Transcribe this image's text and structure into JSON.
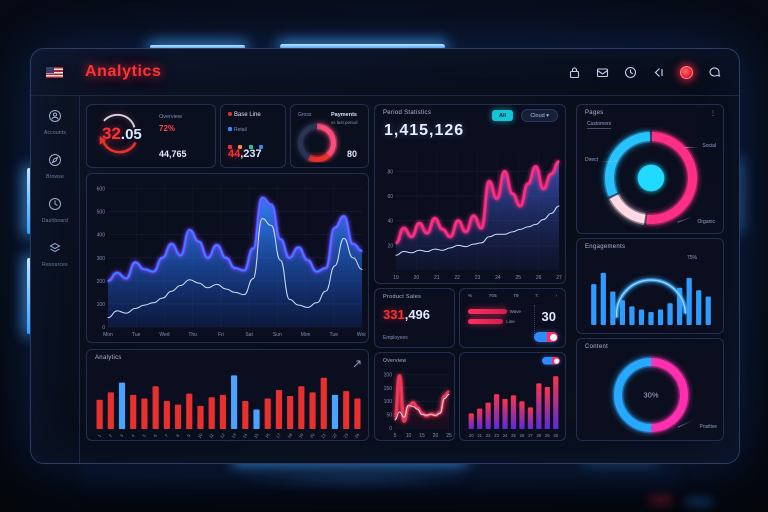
{
  "app": {
    "title": "Analytics"
  },
  "header": {
    "icons": [
      {
        "name": "lock-icon"
      },
      {
        "name": "mail-icon"
      },
      {
        "name": "clock-icon"
      },
      {
        "name": "back-icon"
      },
      {
        "name": "notification-icon"
      },
      {
        "name": "chat-icon"
      }
    ]
  },
  "sidebar": {
    "items": [
      {
        "icon": "account-icon",
        "label": "Accounts"
      },
      {
        "icon": "browse-icon",
        "label": "Browse"
      },
      {
        "icon": "dashboard-icon",
        "label": "Dashboard"
      },
      {
        "icon": "resources-icon",
        "label": "Resources"
      }
    ]
  },
  "kpi": {
    "card1": {
      "label": "Overview",
      "value_main": "32",
      "value_decimal": ".05",
      "percent": "72%",
      "total": "44,765"
    },
    "card2": {
      "legend": "Base Line",
      "sub": "Retail",
      "value_red": "44",
      "value_rest": ",237"
    },
    "card3": {
      "label_left": "Gross",
      "label_right": "Payments",
      "sub": "vs last period",
      "value": "80"
    }
  },
  "pink_panel": {
    "title": "Period Statistics",
    "value": "1,415,126",
    "button": "All",
    "dropdown": "Cloud ▾"
  },
  "product_panel": {
    "title": "Product Sales",
    "value_red": "331",
    "value_rest": ",496",
    "footer": "Employees"
  },
  "stats_panel": {
    "headers": [
      "%",
      "705",
      "79",
      "7:",
      "›"
    ],
    "bars": [
      {
        "label": "Wave",
        "value": 92
      },
      {
        "label": "Line",
        "value": 84
      }
    ],
    "value": "30"
  },
  "overview_panel": {
    "title": "Overview"
  },
  "analytics_panel": {
    "title": "Analytics"
  },
  "pages_panel": {
    "title": "Pages",
    "subtitle": "Customers",
    "labels": [
      "Direct",
      "Social",
      "Organic"
    ]
  },
  "engagement_panel": {
    "title": "Engagements",
    "annotation": "75%"
  },
  "content_panel": {
    "title": "Content",
    "label": "Positive"
  },
  "chart_data": [
    {
      "id": "main-area",
      "type": "area",
      "ylim": [
        0,
        620
      ],
      "vgrid": 9,
      "yticks": [
        600,
        500,
        400,
        300,
        200,
        100,
        0
      ],
      "categories": [
        "Mon",
        "Tue",
        "Wed",
        "Thu",
        "Fri",
        "Sat",
        "Sun",
        "Mon",
        "Tue",
        "Wed"
      ],
      "series": [
        {
          "name": "traffic",
          "color": "#2f8bff",
          "fill": true,
          "fillColor": "#2f8bff",
          "fillBottom": "#1b4fd0",
          "fillTop": 0.95,
          "glow": "#7a3bff",
          "lw": 1.6,
          "values": [
            200,
            235,
            210,
            280,
            250,
            240,
            300,
            360,
            310,
            420,
            370,
            300,
            355,
            300,
            255,
            245,
            340,
            560,
            530,
            380,
            300,
            345,
            290,
            240,
            255,
            430,
            480,
            360,
            330
          ]
        },
        {
          "name": "baseline",
          "color": "#cfe0ff",
          "fill": false,
          "lw": 1,
          "values": [
            40,
            70,
            60,
            80,
            95,
            105,
            125,
            155,
            180,
            205,
            190,
            170,
            185,
            165,
            150,
            140,
            210,
            470,
            440,
            290,
            120,
            95,
            85,
            105,
            155,
            265,
            385,
            300,
            250
          ]
        }
      ]
    },
    {
      "id": "pink-line",
      "type": "area",
      "ylim": [
        0,
        95
      ],
      "vgrid": 8,
      "yticks": [
        80,
        60,
        40,
        20
      ],
      "categories": [
        "19",
        "20",
        "21",
        "22",
        "23",
        "24",
        "25",
        "26",
        "27"
      ],
      "series": [
        {
          "name": "trend",
          "color": "#ff2f86",
          "fill": true,
          "fillColor": "#3c57c9",
          "fillBottom": "#222d66",
          "fillTop": 0.85,
          "glow": "#ff2f86",
          "lw": 1.6,
          "values": [
            22,
            34,
            27,
            38,
            30,
            42,
            33,
            27,
            40,
            31,
            44,
            34,
            72,
            58,
            80,
            62,
            52,
            70,
            84,
            66,
            78,
            88
          ]
        },
        {
          "name": "forecast",
          "color": "#cfe0ff",
          "fill": false,
          "lw": 1,
          "values": [
            12,
            15,
            14,
            16,
            15,
            17,
            16,
            18,
            20,
            19,
            21,
            22,
            27,
            29,
            29,
            31,
            33,
            35,
            37,
            41,
            46,
            52
          ]
        }
      ]
    },
    {
      "id": "mini-line",
      "type": "area",
      "ylim": [
        0,
        220
      ],
      "yticks": [
        200,
        150,
        100,
        50,
        0
      ],
      "categories": [
        "5",
        "10",
        "15",
        "20",
        "25"
      ],
      "series": [
        {
          "name": "loss",
          "color": "#ff3b5c",
          "fill": true,
          "fillColor": "#7c1030",
          "fillBottom": "#40091c",
          "fillTop": 0.9,
          "glow": "#ff3b5c",
          "lw": 1.2,
          "values": [
            35,
            195,
            25,
            80,
            95,
            75,
            55,
            45,
            52,
            48,
            58,
            120,
            135
          ]
        },
        {
          "name": "avg",
          "color": "#e8ecff",
          "fill": false,
          "lw": 0.9,
          "values": [
            30,
            60,
            40,
            85,
            80,
            70,
            50,
            48,
            50,
            47,
            55,
            110,
            125
          ]
        }
      ]
    },
    {
      "id": "gradient-bars",
      "type": "bar",
      "ylim": [
        0,
        100
      ],
      "barWidth": 0.62,
      "categories": [
        "20",
        "21",
        "22",
        "23",
        "24",
        "25",
        "26",
        "27",
        "28",
        "29",
        "30"
      ],
      "values": [
        26,
        34,
        44,
        58,
        50,
        56,
        46,
        36,
        76,
        70,
        88
      ],
      "gradient": [
        "#ff3348",
        "#5b2bd9"
      ]
    },
    {
      "id": "analytics-bars",
      "type": "bar",
      "ylim": [
        0,
        100
      ],
      "barWidth": 0.55,
      "tickRotate": -55,
      "categories": [
        "1",
        "2",
        "3",
        "4",
        "5",
        "6",
        "7",
        "8",
        "9",
        "10",
        "11",
        "12",
        "13",
        "14",
        "15",
        "16",
        "17",
        "18",
        "19",
        "20",
        "21",
        "22",
        "23",
        "24"
      ],
      "values": [
        48,
        60,
        76,
        56,
        50,
        70,
        46,
        40,
        58,
        38,
        52,
        56,
        88,
        46,
        32,
        50,
        64,
        54,
        70,
        60,
        84,
        56,
        62,
        50
      ],
      "color": "#e8312f",
      "highlight": "#4aa3ff",
      "highlight_indices": [
        2,
        12,
        14,
        21
      ]
    },
    {
      "id": "engagement-bars",
      "type": "bars-arc",
      "color": "#2f9bff",
      "values": [
        66,
        84,
        54,
        40,
        30,
        25,
        21,
        25,
        35,
        60,
        76,
        56,
        46
      ],
      "arc": {
        "color": "#35a8ff",
        "annotation": "75%"
      }
    },
    {
      "id": "pages-ring",
      "type": "donut",
      "thickness": 9,
      "gap": 3,
      "center_dot": "#20d9ff",
      "segments": [
        {
          "label": "Direct",
          "value": 52,
          "color": "#ff2f86"
        },
        {
          "label": "Social",
          "value": 16,
          "color": "#ffd9e4"
        },
        {
          "label": "Organic",
          "value": 32,
          "color": "#28c2ff"
        }
      ]
    },
    {
      "id": "content-donut",
      "type": "donut",
      "thickness": 8,
      "center_text": "30%",
      "segments": [
        {
          "label": "Positive",
          "value": 50,
          "color": "#ff2fb0"
        },
        {
          "label": "Other",
          "value": 50,
          "color": "#29a8ff"
        }
      ]
    },
    {
      "id": "kpi3-donut",
      "type": "donut",
      "thickness": 5,
      "segments": [
        {
          "value": 38,
          "color": "#ff4d7a"
        },
        {
          "value": 20,
          "color": "#e8312f"
        },
        {
          "value": 42,
          "color": "#2a3352"
        }
      ]
    }
  ]
}
